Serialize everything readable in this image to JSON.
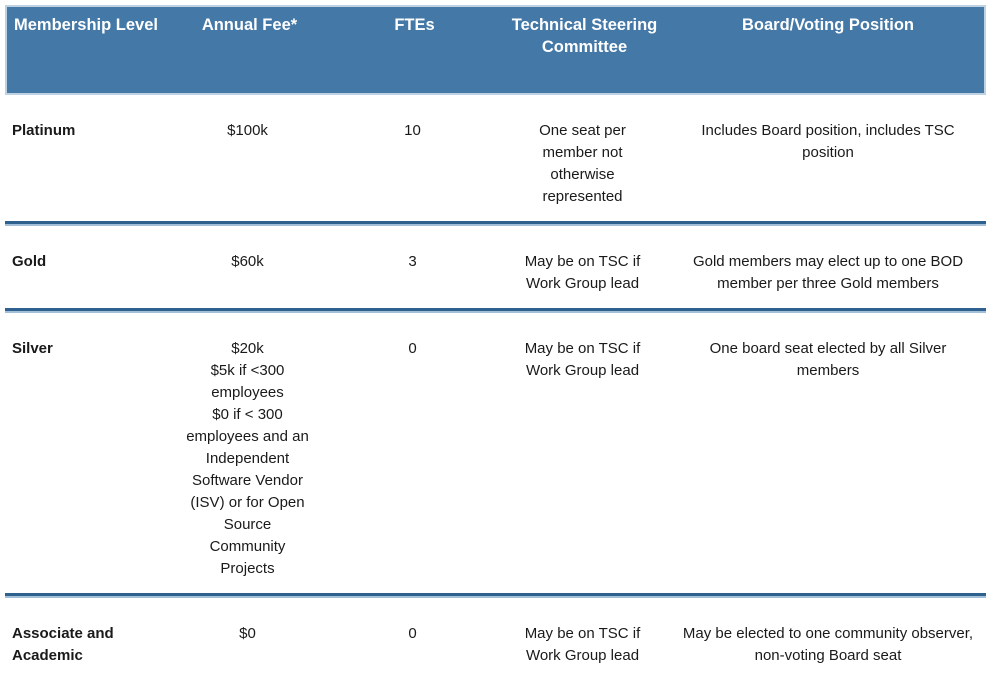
{
  "theme": {
    "header_bg": "#4478a7",
    "header_text": "#ffffff",
    "header_border": "#bfd2e2",
    "divider_dark": "#2e618e",
    "divider_light": "#a3bfd8",
    "body_text": "#1a1a1a"
  },
  "table": {
    "columns": [
      {
        "label": "Membership Level"
      },
      {
        "label": "Annual Fee*"
      },
      {
        "label": "FTEs"
      },
      {
        "label": "Technical Steering Committee"
      },
      {
        "label": "Board/Voting Position"
      }
    ],
    "rows": [
      {
        "level": "Platinum",
        "fee": "$100k",
        "ftes": "10",
        "tsc": "One seat per member not otherwise represented",
        "board": "Includes Board position, includes TSC position"
      },
      {
        "level": "Gold",
        "fee": "$60k",
        "ftes": "3",
        "tsc": "May be on TSC if Work Group lead",
        "board": "Gold members may elect up to one BOD member per three Gold members"
      },
      {
        "level": "Silver",
        "fee": "$20k\n$5k if <300 employees\n$0 if < 300 employees and an Independent Software Vendor (ISV) or for Open Source Community Projects",
        "ftes": "0",
        "tsc": "May be on TSC if Work Group lead",
        "board": "One board seat elected by all Silver members"
      },
      {
        "level": "Associate and Academic",
        "fee": "$0",
        "ftes": "0",
        "tsc": "May be on TSC if Work Group lead",
        "board": "May be elected to one community observer, non-voting Board seat"
      }
    ]
  }
}
